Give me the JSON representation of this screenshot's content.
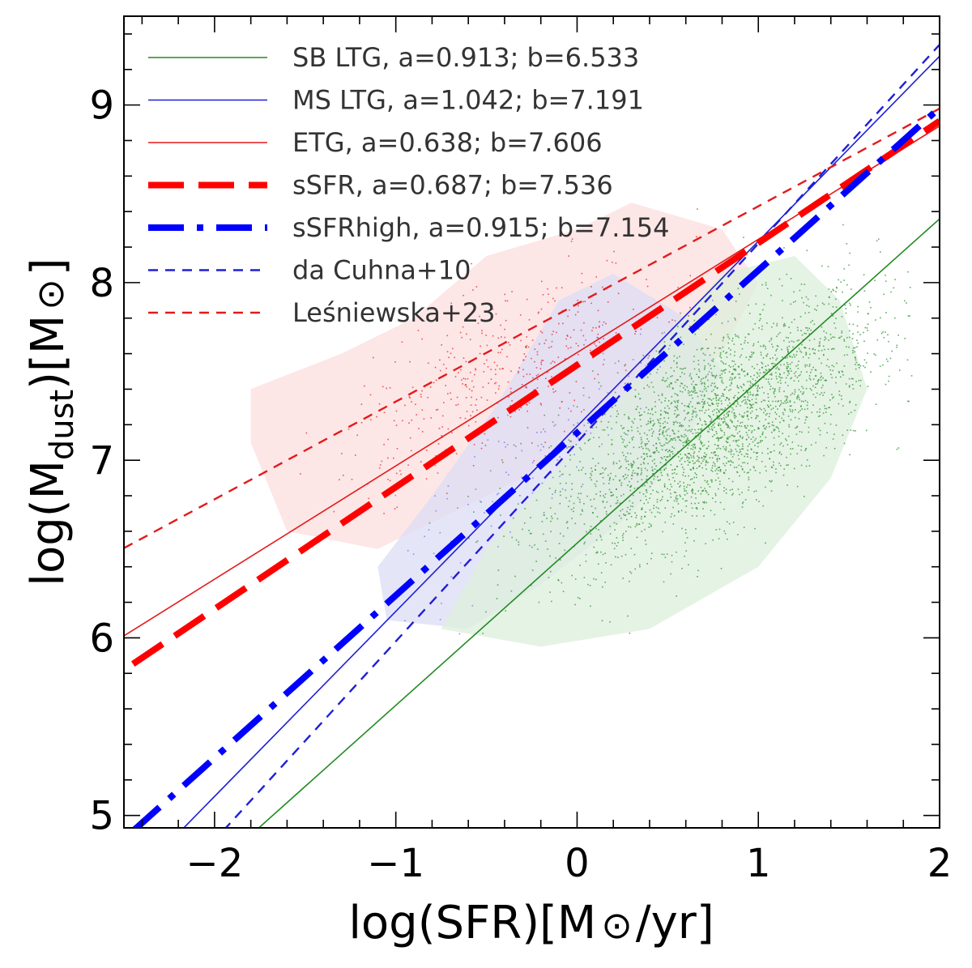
{
  "chart_data": {
    "type": "scatter",
    "title": "",
    "xlabel_parts": [
      "log(SFR)[M",
      "⊙",
      "/yr]"
    ],
    "ylabel_parts": [
      "log(M",
      "dust",
      ")[M",
      "⊙",
      "]"
    ],
    "xlim": [
      -2.5,
      2.0
    ],
    "ylim": [
      4.93,
      9.5
    ],
    "xticks": [
      -2,
      -1,
      0,
      1,
      2
    ],
    "xtick_labels": [
      "−2",
      "−1",
      "0",
      "1",
      "2"
    ],
    "yticks": [
      5,
      6,
      7,
      8,
      9
    ],
    "ytick_labels": [
      "5",
      "6",
      "7",
      "8",
      "9"
    ],
    "legend_position": "top-left",
    "series": [
      {
        "name": "SB LTG, a=0.913; b=6.533",
        "kind": "fit",
        "a": 0.913,
        "b": 6.533,
        "color": "#228b22",
        "style": "solid",
        "width": 1.6,
        "x_range": [
          -1.8,
          2.0
        ]
      },
      {
        "name": "MS LTG, a=1.042; b=7.191",
        "kind": "fit",
        "a": 1.042,
        "b": 7.191,
        "color": "#1f1fd6",
        "style": "solid",
        "width": 1.6,
        "x_range": [
          -2.2,
          2.0
        ]
      },
      {
        "name": "ETG, a=0.638; b=7.606",
        "kind": "fit",
        "a": 0.638,
        "b": 7.606,
        "color": "#e31a1c",
        "style": "solid",
        "width": 1.6,
        "x_range": [
          -2.5,
          2.0
        ]
      },
      {
        "name": "sSFR, a=0.687; b=7.536",
        "kind": "fit",
        "a": 0.687,
        "b": 7.536,
        "color": "#ff0000",
        "style": "dashed",
        "width": 8,
        "x_range": [
          -2.45,
          2.0
        ]
      },
      {
        "name": "sSFRhigh, a=0.915; b=7.154",
        "kind": "fit",
        "a": 0.915,
        "b": 7.154,
        "color": "#0000ff",
        "style": "dashdot",
        "width": 8,
        "x_range": [
          -2.45,
          2.0
        ]
      },
      {
        "name": "da Cuhna+10",
        "kind": "literature",
        "a": 1.12,
        "b": 7.1,
        "color": "#1f1fd6",
        "style": "dotted",
        "width": 2.4,
        "x_range": [
          -1.95,
          2.0
        ]
      },
      {
        "name": "Leśniewska+23",
        "kind": "literature",
        "a": 0.55,
        "b": 7.88,
        "color": "#e31a1c",
        "style": "dotted",
        "width": 2.4,
        "x_range": [
          -2.5,
          2.0
        ]
      }
    ],
    "populations": [
      {
        "name": "SB LTG sample",
        "color": "#228b22",
        "center": [
          0.75,
          7.2
        ],
        "spread": [
          0.45,
          0.45
        ],
        "slope": 0.55,
        "x_range": [
          -0.9,
          1.85
        ],
        "y_range": [
          6.0,
          8.6
        ],
        "points": 2600
      },
      {
        "name": "MS LTG sample",
        "color": "#6a6ae8",
        "center": [
          -0.2,
          7.0
        ],
        "spread": [
          0.4,
          0.4
        ],
        "slope": 0.9,
        "x_range": [
          -1.2,
          0.9
        ],
        "y_range": [
          6.0,
          8.0
        ],
        "points": 120
      },
      {
        "name": "ETG sample",
        "color": "#e31a1c",
        "center": [
          -0.4,
          7.5
        ],
        "spread": [
          0.45,
          0.35
        ],
        "slope": 0.45,
        "x_range": [
          -1.6,
          0.7
        ],
        "y_range": [
          6.6,
          8.5
        ],
        "points": 420
      }
    ],
    "density_regions": [
      {
        "name": "ETG density",
        "color": "#fcdede",
        "outline": [
          [
            -1.6,
            6.6
          ],
          [
            -1.1,
            6.5
          ],
          [
            -0.7,
            6.7
          ],
          [
            -0.3,
            6.9
          ],
          [
            0.0,
            7.1
          ],
          [
            0.4,
            7.3
          ],
          [
            0.8,
            7.6
          ],
          [
            1.0,
            8.0
          ],
          [
            0.8,
            8.3
          ],
          [
            0.3,
            8.45
          ],
          [
            0.0,
            8.3
          ],
          [
            -0.5,
            8.15
          ],
          [
            -0.9,
            7.8
          ],
          [
            -1.3,
            7.6
          ],
          [
            -1.8,
            7.4
          ],
          [
            -1.8,
            7.1
          ]
        ]
      },
      {
        "name": "MS LTG density",
        "color": "#dcdcf6",
        "outline": [
          [
            -1.05,
            6.1
          ],
          [
            -0.6,
            6.05
          ],
          [
            -0.2,
            6.3
          ],
          [
            0.3,
            6.7
          ],
          [
            0.6,
            7.1
          ],
          [
            0.8,
            7.5
          ],
          [
            0.6,
            7.8
          ],
          [
            0.2,
            8.05
          ],
          [
            -0.1,
            7.9
          ],
          [
            -0.45,
            7.3
          ],
          [
            -0.8,
            6.8
          ],
          [
            -1.1,
            6.4
          ]
        ]
      },
      {
        "name": "SB LTG density",
        "color": "#dcefdc",
        "outline": [
          [
            -0.75,
            6.05
          ],
          [
            -0.2,
            5.95
          ],
          [
            0.4,
            6.05
          ],
          [
            1.0,
            6.4
          ],
          [
            1.4,
            6.9
          ],
          [
            1.6,
            7.4
          ],
          [
            1.45,
            7.9
          ],
          [
            1.2,
            8.15
          ],
          [
            0.8,
            8.05
          ],
          [
            0.5,
            7.7
          ],
          [
            0.2,
            7.3
          ],
          [
            -0.2,
            6.85
          ],
          [
            -0.5,
            6.5
          ]
        ]
      }
    ]
  }
}
